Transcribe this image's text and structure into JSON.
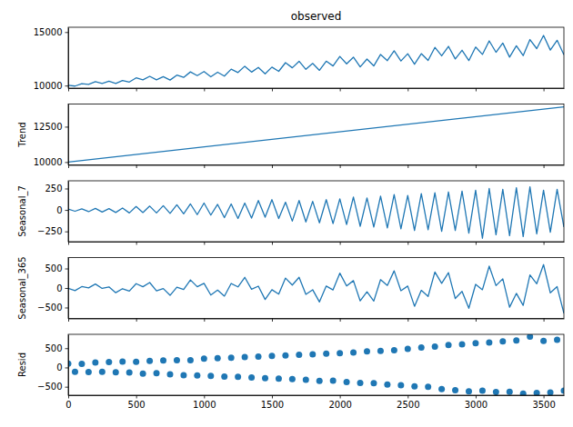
{
  "chart_data": [
    {
      "type": "line",
      "title": "observed",
      "color": "#1f77b4",
      "tick_labels": "y",
      "x": [
        0,
        50,
        100,
        150,
        200,
        250,
        300,
        350,
        400,
        450,
        500,
        550,
        600,
        650,
        700,
        750,
        800,
        850,
        900,
        950,
        1000,
        1050,
        1100,
        1150,
        1200,
        1250,
        1300,
        1350,
        1400,
        1450,
        1500,
        1550,
        1600,
        1650,
        1700,
        1750,
        1800,
        1850,
        1900,
        1950,
        2000,
        2050,
        2100,
        2150,
        2200,
        2250,
        2300,
        2350,
        2400,
        2450,
        2500,
        2550,
        2600,
        2650,
        2700,
        2750,
        2800,
        2850,
        2900,
        2950,
        3000,
        3050,
        3100,
        3150,
        3200,
        3250,
        3300,
        3350,
        3400,
        3450,
        3500,
        3550,
        3600,
        3650
      ],
      "values": [
        10020,
        9951,
        10182,
        10119,
        10363,
        10203,
        10404,
        10192,
        10475,
        10331,
        10720,
        10538,
        10864,
        10532,
        10826,
        10515,
        10975,
        10763,
        11278,
        10931,
        11307,
        10816,
        11250,
        10886,
        11536,
        11221,
        11808,
        11258,
        11697,
        11095,
        11724,
        11329,
        12137,
        11659,
        12272,
        11518,
        12069,
        11422,
        12280,
        11829,
        12726,
        12027,
        12651,
        11742,
        12480,
        11835,
        12907,
        12334,
        13249,
        12297,
        12974,
        11994,
        12981,
        12345,
        13566,
        12779,
        13665,
        12488,
        13302,
        12336,
        13598,
        12908,
        14179,
        13111,
        13972,
        12657,
        13713,
        12801,
        14300,
        13454,
        14682,
        13317,
        14233,
        12889
      ],
      "xlim": [
        0,
        3650
      ],
      "xticks": [
        0,
        500,
        1000,
        1500,
        2000,
        2500,
        3000,
        3500
      ],
      "ylim": [
        9760,
        15450
      ],
      "yticks": [
        10000,
        15000
      ]
    },
    {
      "type": "line",
      "y_label": "Trend",
      "color": "#1f77b4",
      "tick_labels": "y",
      "x": [
        0,
        3650
      ],
      "values": [
        10000,
        13898
      ],
      "xlim": [
        0,
        3650
      ],
      "xticks": [
        0,
        500,
        1000,
        1500,
        2000,
        2500,
        3000,
        3500
      ],
      "ylim": [
        9800,
        14100
      ],
      "yticks": [
        10000,
        12500
      ]
    },
    {
      "type": "line",
      "y_label": "Seasonal_7",
      "color": "#1f77b4",
      "tick_labels": "y",
      "x": [
        0,
        50,
        100,
        150,
        200,
        250,
        300,
        350,
        400,
        450,
        500,
        550,
        600,
        650,
        700,
        750,
        800,
        850,
        900,
        950,
        1000,
        1050,
        1100,
        1150,
        1200,
        1250,
        1300,
        1350,
        1400,
        1450,
        1500,
        1550,
        1600,
        1650,
        1700,
        1750,
        1800,
        1850,
        1900,
        1950,
        2000,
        2050,
        2100,
        2150,
        2200,
        2250,
        2300,
        2350,
        2400,
        2450,
        2500,
        2550,
        2600,
        2650,
        2700,
        2750,
        2800,
        2850,
        2900,
        2950,
        3000,
        3050,
        3100,
        3150,
        3200,
        3250,
        3300,
        3350,
        3400,
        3450,
        3500,
        3550,
        3600,
        3650
      ],
      "values": [
        10,
        -15,
        12,
        -20,
        18,
        -25,
        15,
        -30,
        22,
        -35,
        40,
        -30,
        45,
        -35,
        50,
        -40,
        60,
        -45,
        70,
        -55,
        80,
        -60,
        65,
        -90,
        70,
        -100,
        80,
        -95,
        110,
        -85,
        120,
        -100,
        90,
        -130,
        110,
        -140,
        100,
        -150,
        120,
        -160,
        130,
        -170,
        150,
        -190,
        140,
        -200,
        160,
        -210,
        180,
        -220,
        170,
        -240,
        190,
        -230,
        200,
        -250,
        210,
        -240,
        220,
        -270,
        230,
        -330,
        250,
        -290,
        240,
        -300,
        260,
        -310,
        270,
        -280,
        230,
        -260,
        240,
        -200
      ],
      "xlim": [
        0,
        3650
      ],
      "xticks": [
        0,
        500,
        1000,
        1500,
        2000,
        2500,
        3000,
        3500
      ],
      "ylim": [
        -370,
        340
      ],
      "yticks": [
        {
          "value": -250,
          "label": "−250"
        },
        0,
        250
      ]
    },
    {
      "type": "line",
      "y_label": "Seasonal_365",
      "color": "#1f77b4",
      "tick_labels": "y",
      "x": [
        0,
        50,
        100,
        150,
        200,
        250,
        300,
        350,
        400,
        450,
        500,
        550,
        600,
        650,
        700,
        750,
        800,
        850,
        900,
        950,
        1000,
        1050,
        1100,
        1150,
        1200,
        1250,
        1300,
        1350,
        1400,
        1450,
        1500,
        1550,
        1600,
        1650,
        1700,
        1750,
        1800,
        1850,
        1900,
        1950,
        2000,
        2050,
        2100,
        2150,
        2200,
        2250,
        2300,
        2350,
        2400,
        2450,
        2500,
        2550,
        2600,
        2650,
        2700,
        2750,
        2800,
        2850,
        2900,
        2950,
        3000,
        3050,
        3100,
        3150,
        3200,
        3250,
        3300,
        3350,
        3400,
        3450,
        3500,
        3550,
        3600,
        3650
      ],
      "values": [
        -10,
        -67,
        36,
        3,
        101,
        -11,
        27,
        -120,
        -18,
        -79,
        111,
        31,
        139,
        -73,
        -15,
        -188,
        19,
        -38,
        206,
        32,
        119,
        -180,
        -54,
        -208,
        116,
        29,
        273,
        -32,
        46,
        -293,
        -43,
        -156,
        254,
        76,
        273,
        -163,
        -45,
        -357,
        50,
        -48,
        380,
        53,
        189,
        -330,
        -98,
        -335,
        214,
        66,
        440,
        -69,
        49,
        -469,
        -60,
        -216,
        409,
        120,
        393,
        -269,
        -86,
        -519,
        94,
        -44,
        559,
        61,
        236,
        -491,
        -138,
        -445,
        333,
        110,
        599,
        -124,
        34,
        -650
      ],
      "xlim": [
        0,
        3650
      ],
      "xticks": [
        0,
        500,
        1000,
        1500,
        2000,
        2500,
        3000,
        3500
      ],
      "ylim": [
        -780,
        780
      ],
      "yticks": [
        {
          "value": -500,
          "label": "−500"
        },
        0,
        500
      ]
    },
    {
      "type": "scatter",
      "y_label": "Resid",
      "color": "#1f77b4",
      "marker": "circle",
      "x": [
        0,
        50,
        100,
        150,
        200,
        250,
        300,
        350,
        400,
        450,
        500,
        550,
        600,
        650,
        700,
        750,
        800,
        850,
        900,
        950,
        1000,
        1050,
        1100,
        1150,
        1200,
        1250,
        1300,
        1350,
        1400,
        1450,
        1500,
        1550,
        1600,
        1650,
        1700,
        1750,
        1800,
        1850,
        1900,
        1950,
        2000,
        2050,
        2100,
        2150,
        2200,
        2250,
        2300,
        2350,
        2400,
        2450,
        2500,
        2550,
        2600,
        2650,
        2700,
        2750,
        2800,
        2850,
        2900,
        2950,
        3000,
        3050,
        3100,
        3150,
        3200,
        3250,
        3300,
        3350,
        3400,
        3450,
        3500,
        3550,
        3600,
        3650
      ],
      "values": [
        100,
        -110,
        95,
        -120,
        130,
        -115,
        140,
        -125,
        150,
        -130,
        145,
        -160,
        170,
        -150,
        180,
        -175,
        190,
        -200,
        185,
        -210,
        230,
        -220,
        240,
        -235,
        250,
        -240,
        270,
        -260,
        280,
        -275,
        300,
        -290,
        310,
        -300,
        330,
        -320,
        340,
        -350,
        360,
        -340,
        370,
        -380,
        390,
        -400,
        420,
        -410,
        430,
        -440,
        450,
        -460,
        480,
        -490,
        520,
        -500,
        540,
        -560,
        580,
        -590,
        600,
        -620,
        630,
        -600,
        650,
        -640,
        680,
        -630,
        700,
        -680,
        800,
        -660,
        690,
        -650,
        720,
        -600
      ],
      "xlim": [
        0,
        3650
      ],
      "xticks": [
        0,
        500,
        1000,
        1500,
        2000,
        2500,
        3000,
        3500
      ],
      "ylim": [
        -720,
        860
      ],
      "yticks": [
        {
          "value": -500,
          "label": "−500"
        },
        0,
        500
      ]
    }
  ]
}
